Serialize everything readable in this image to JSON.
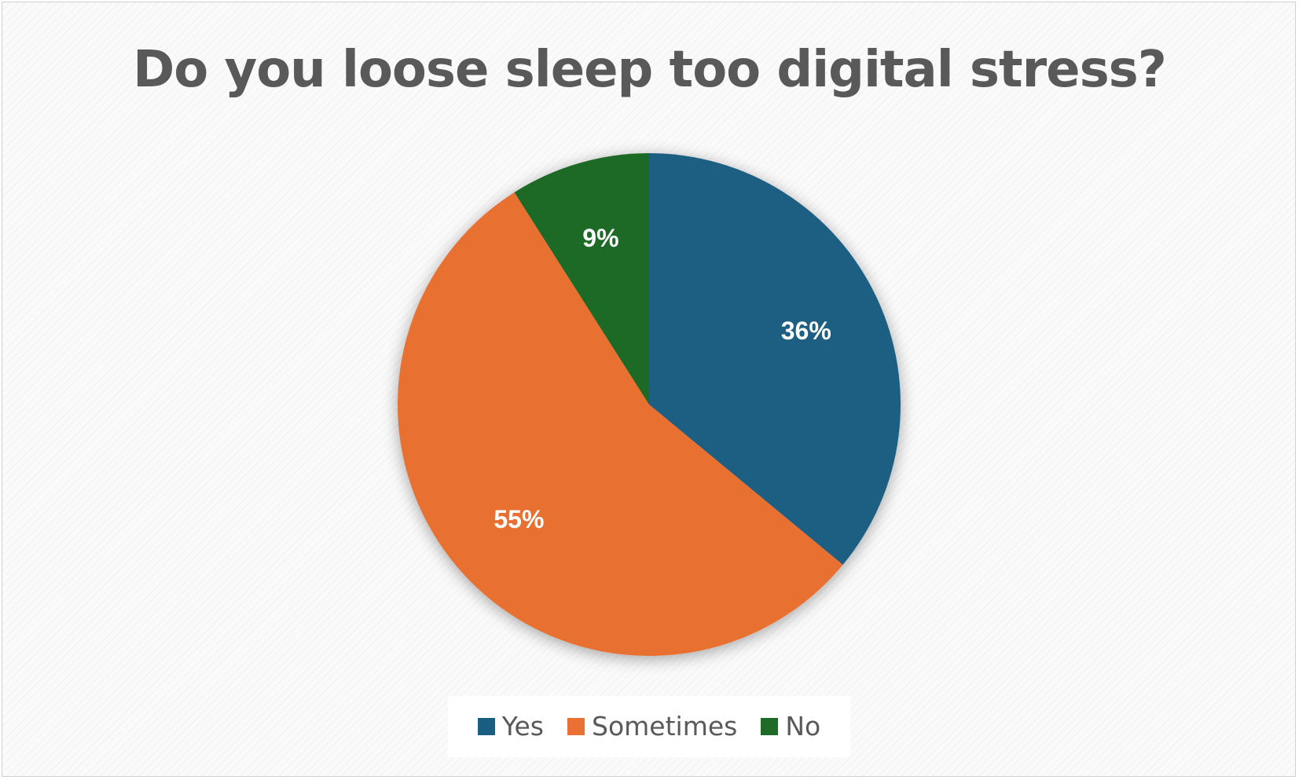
{
  "chart_data": {
    "type": "pie",
    "title": "Do you loose sleep too digital stress?",
    "slices": [
      {
        "name": "Yes",
        "value": 36,
        "label": "36%",
        "color": "#1a5f82"
      },
      {
        "name": "Sometimes",
        "value": 55,
        "label": "55%",
        "color": "#e87133"
      },
      {
        "name": "No",
        "value": 9,
        "label": "9%",
        "color": "#1e6b28"
      }
    ],
    "start_angle": "12 o'clock",
    "direction": "clockwise",
    "legend_position": "bottom",
    "legend": [
      {
        "label": "Yes",
        "color": "#1a5f82"
      },
      {
        "label": "Sometimes",
        "color": "#e87133"
      },
      {
        "label": "No",
        "color": "#1e6b28"
      }
    ]
  }
}
